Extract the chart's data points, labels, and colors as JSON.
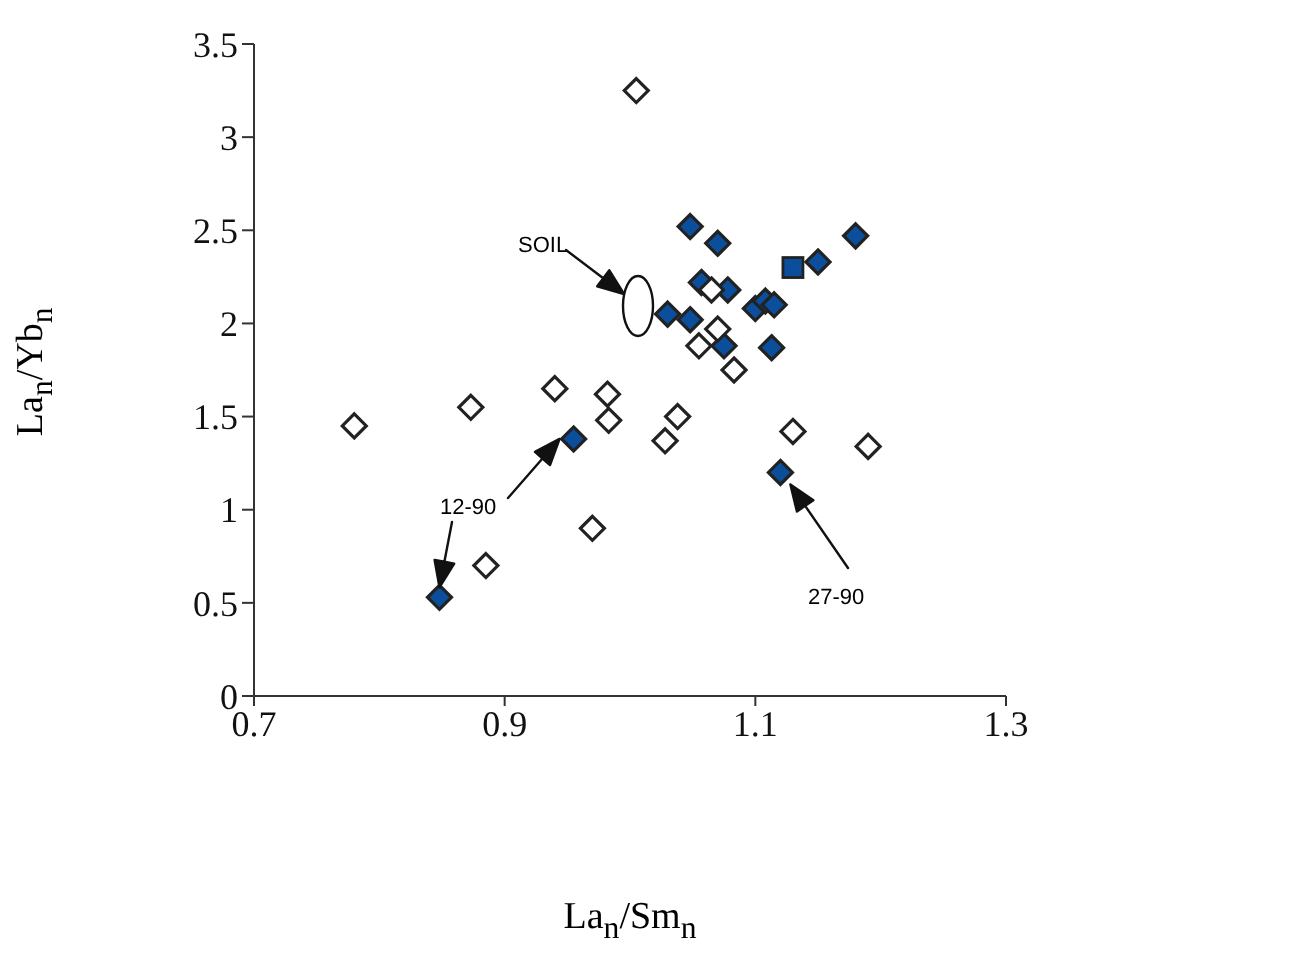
{
  "chart_data": {
    "type": "scatter",
    "xlabel": "La$_{n}$/Sm$_{n}$",
    "ylabel": "La$_{n}$/Yb$_{n}$",
    "xlim": [
      0.7,
      1.3
    ],
    "xticks": [
      0.7,
      0.9,
      1.1,
      1.3
    ],
    "ylim": [
      0,
      3.5
    ],
    "yticks": [
      0,
      0.5,
      1,
      1.5,
      2,
      2.5,
      3,
      3.5
    ],
    "grid": false,
    "legend": false,
    "series": [
      {
        "color": "#0b4f9c",
        "marker": "diamond",
        "x": [
          0.848,
          0.955,
          1.03,
          1.048,
          1.048,
          1.057,
          1.07,
          1.075,
          1.078,
          1.1,
          1.108,
          1.113,
          1.115,
          1.12,
          1.15,
          1.18
        ],
        "values": [
          0.53,
          1.38,
          2.05,
          2.52,
          2.02,
          2.22,
          2.43,
          1.88,
          2.18,
          2.08,
          2.12,
          1.87,
          2.1,
          1.2,
          2.33,
          2.47
        ]
      },
      {
        "color": "#0b4f9c",
        "marker": "square",
        "x": [
          1.13
        ],
        "values": [
          2.3
        ]
      },
      {
        "color": "#ffffff",
        "marker": "diamond",
        "x": [
          0.78,
          0.873,
          0.885,
          0.94,
          0.97,
          0.982,
          0.983,
          1.005,
          1.028,
          1.038,
          1.055,
          1.065,
          1.07,
          1.083,
          1.13,
          1.19
        ],
        "values": [
          1.45,
          1.55,
          0.7,
          1.65,
          0.9,
          1.62,
          1.48,
          3.25,
          1.37,
          1.5,
          1.88,
          2.18,
          1.97,
          1.75,
          1.42,
          1.34
        ]
      }
    ],
    "annotations": [
      "SOIL",
      "12-90",
      "27-90"
    ]
  }
}
